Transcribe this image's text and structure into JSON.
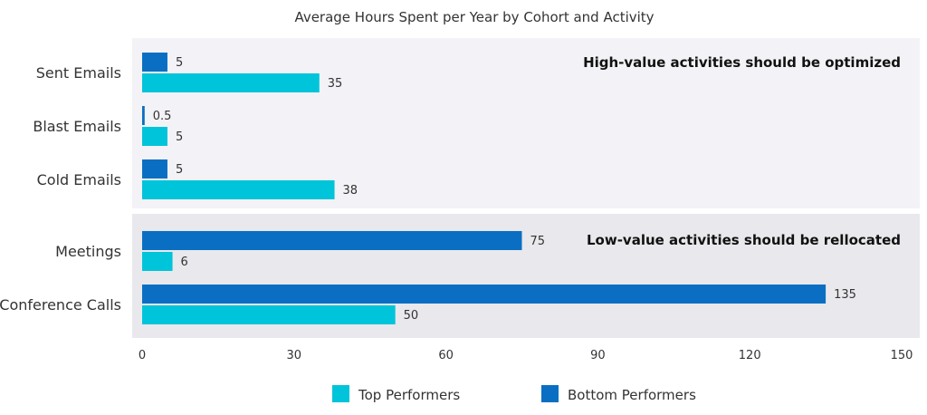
{
  "chart_data": {
    "type": "bar",
    "orientation": "horizontal",
    "title": "Average Hours Spent per Year by Cohort and Activity",
    "categories": [
      "Sent Emails",
      "Blast Emails",
      "Cold Emails",
      "Meetings",
      "Conference Calls"
    ],
    "series": [
      {
        "name": "Bottom Performers",
        "color": "#0a6fc2",
        "values": [
          5,
          0.5,
          5,
          75,
          135
        ]
      },
      {
        "name": "Top Performers",
        "color": "#00c4d9",
        "values": [
          35,
          5,
          38,
          6,
          50
        ]
      }
    ],
    "xlim": [
      0,
      150
    ],
    "x_ticks": [
      0,
      30,
      60,
      90,
      120,
      150
    ],
    "grid": false,
    "legend_position": "bottom",
    "legend_order": [
      "Top Performers",
      "Bottom Performers"
    ],
    "groups": [
      {
        "categories": [
          "Sent Emails",
          "Blast Emails",
          "Cold Emails"
        ],
        "annotation": "High-value activities should be optimized",
        "background": "#f3f2f6"
      },
      {
        "categories": [
          "Meetings",
          "Conference Calls"
        ],
        "annotation": "Low-value activities should be rellocated",
        "background": "#e9e8ec"
      }
    ]
  }
}
